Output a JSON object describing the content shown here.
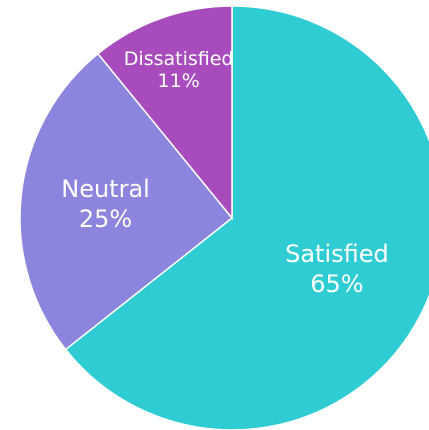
{
  "chart_data": {
    "type": "pie",
    "title": "",
    "slices": [
      {
        "label": "Satisfied",
        "value": 65,
        "value_text": "65%",
        "color": "#2fcdd3"
      },
      {
        "label": "Neutral",
        "value": 25,
        "value_text": "25%",
        "color": "#8b85dd"
      },
      {
        "label": "Dissatisfied",
        "value": 11,
        "value_text": "11%",
        "color": "#a84cbd"
      }
    ],
    "legend": "none"
  }
}
